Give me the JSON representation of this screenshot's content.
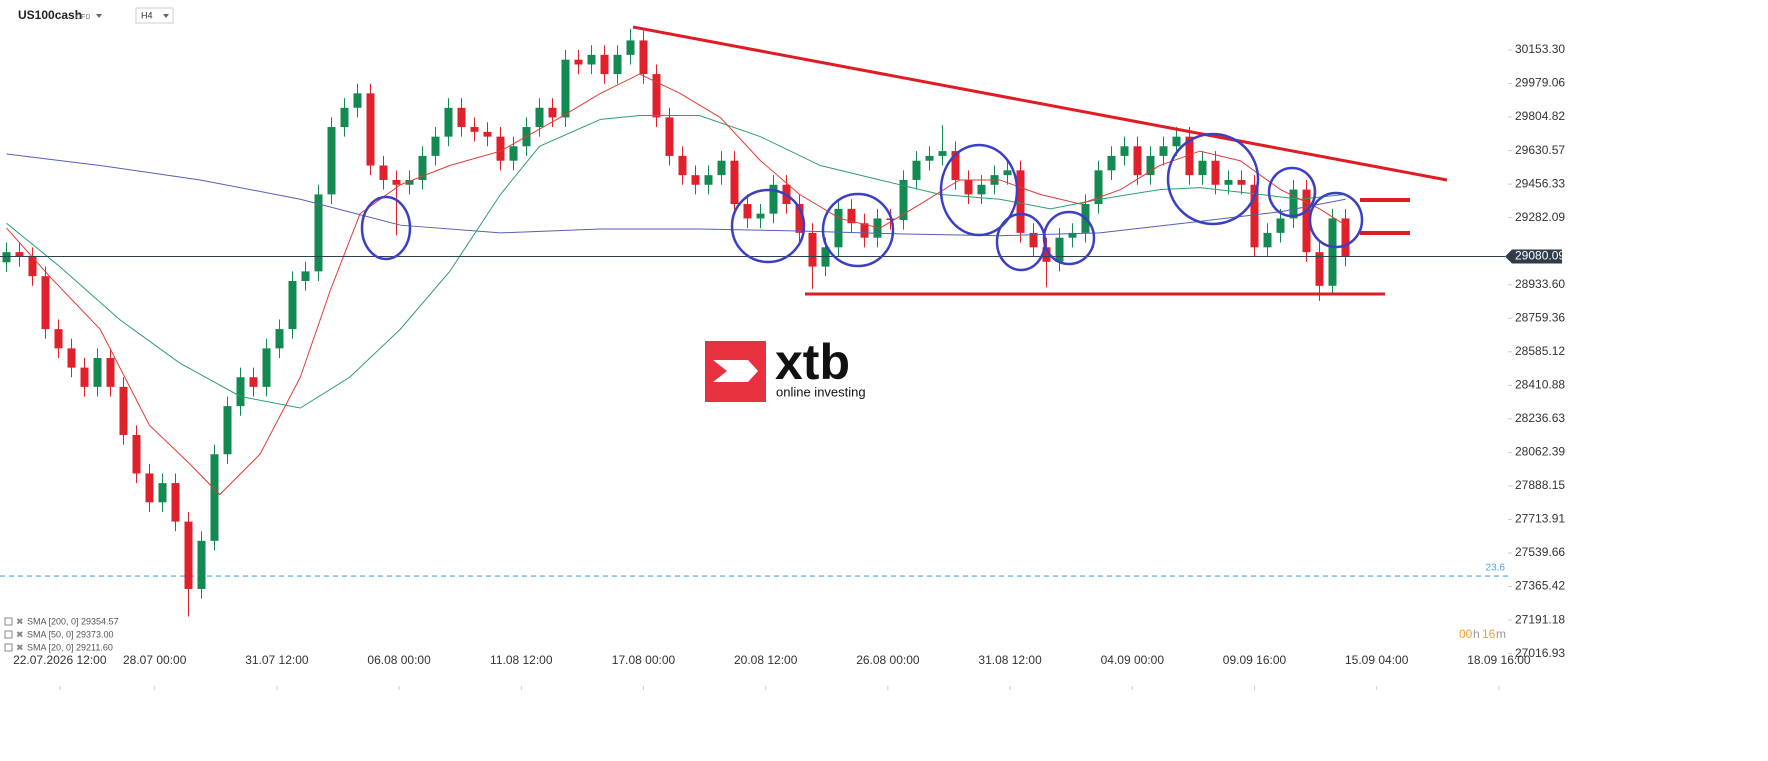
{
  "chart_data": {
    "type": "candlestick",
    "title": "US100cash",
    "instrument_type": "CFD",
    "timeframe": "H4",
    "up_color": "#138a52",
    "down_color": "#e0212c",
    "open": [
      29050,
      29103,
      29078,
      28978,
      28703,
      28603,
      28503,
      28403,
      28553,
      28403,
      28153,
      27953,
      27803,
      27903,
      27703,
      27353,
      27603,
      28053,
      28303,
      28453,
      28403,
      28603,
      28703,
      28953,
      29003,
      29403,
      29753,
      29853,
      29928,
      29553,
      29478,
      29453,
      29478,
      29603,
      29703,
      29853,
      29753,
      29728,
      29703,
      29578,
      29653,
      29753,
      29853,
      29803,
      30103,
      30078,
      30128,
      30028,
      30128,
      30203,
      30028,
      29803,
      29603,
      29503,
      29453,
      29503,
      29578,
      29353,
      29278,
      29303,
      29453,
      29353,
      29203,
      29028,
      29128,
      29328,
      29253,
      29178,
      29278,
      29270,
      29478,
      29578,
      29603,
      29628,
      29478,
      29403,
      29453,
      29503,
      29528,
      29203,
      29128,
      29053,
      29178,
      29203,
      29353,
      29528,
      29603,
      29653,
      29503,
      29603,
      29653,
      29703,
      29503,
      29578,
      29453,
      29478,
      29453,
      29128,
      29203,
      29278,
      29428,
      29103,
      28928,
      29278
    ],
    "high": [
      29153,
      29153,
      29128,
      29028,
      28753,
      28653,
      28553,
      28603,
      28603,
      28453,
      28203,
      28003,
      27953,
      27953,
      27753,
      27653,
      28103,
      28353,
      28503,
      28503,
      28653,
      28753,
      29003,
      29053,
      29453,
      29803,
      29903,
      29978,
      29978,
      29603,
      29528,
      29528,
      29653,
      29753,
      29903,
      29903,
      29803,
      29778,
      29753,
      29703,
      29803,
      29903,
      29903,
      30153,
      30153,
      30178,
      30178,
      30178,
      30263,
      30253,
      30078,
      29853,
      29653,
      29553,
      29553,
      29628,
      29628,
      29403,
      29353,
      29503,
      29503,
      29403,
      29253,
      29178,
      29378,
      29378,
      29303,
      29328,
      29328,
      29528,
      29628,
      29653,
      29763,
      29678,
      29528,
      29503,
      29553,
      29578,
      29578,
      29253,
      29178,
      29228,
      29253,
      29403,
      29578,
      29653,
      29703,
      29703,
      29653,
      29703,
      29753,
      29753,
      29628,
      29628,
      29528,
      29528,
      29503,
      29253,
      29328,
      29478,
      29478,
      29153,
      29328,
      29328
    ],
    "low": [
      29000,
      29028,
      28928,
      28653,
      28553,
      28453,
      28353,
      28353,
      28353,
      28103,
      27903,
      27753,
      27753,
      27653,
      27210,
      27303,
      27553,
      28003,
      28253,
      28353,
      28353,
      28553,
      28653,
      28903,
      28953,
      29353,
      29703,
      29803,
      29503,
      29428,
      29190,
      29403,
      29428,
      29553,
      29653,
      29703,
      29678,
      29653,
      29528,
      29528,
      29603,
      29703,
      29753,
      29753,
      30028,
      30028,
      29978,
      29978,
      30078,
      29978,
      29753,
      29553,
      29453,
      29403,
      29403,
      29453,
      29303,
      29228,
      29228,
      29253,
      29303,
      29153,
      28913,
      28978,
      29078,
      29203,
      29128,
      29128,
      29220,
      29220,
      29428,
      29528,
      29553,
      29428,
      29353,
      29353,
      29403,
      29453,
      29153,
      29078,
      28920,
      29003,
      29128,
      29153,
      29303,
      29478,
      29553,
      29453,
      29453,
      29553,
      29603,
      29453,
      29453,
      29403,
      29403,
      29403,
      29078,
      29078,
      29153,
      29228,
      29053,
      28850,
      28878,
      29030
    ],
    "close": [
      29103,
      29078,
      28978,
      28703,
      28603,
      28503,
      28403,
      28553,
      28403,
      28153,
      27953,
      27803,
      27903,
      27703,
      27353,
      27603,
      28053,
      28303,
      28453,
      28403,
      28603,
      28703,
      28953,
      29003,
      29403,
      29753,
      29853,
      29928,
      29553,
      29478,
      29453,
      29478,
      29603,
      29703,
      29853,
      29753,
      29728,
      29703,
      29578,
      29653,
      29753,
      29853,
      29803,
      30103,
      30078,
      30128,
      30028,
      30128,
      30203,
      30028,
      29803,
      29603,
      29503,
      29453,
      29503,
      29578,
      29353,
      29278,
      29303,
      29453,
      29353,
      29203,
      29028,
      29128,
      29328,
      29253,
      29178,
      29278,
      29270,
      29478,
      29578,
      29603,
      29628,
      29478,
      29403,
      29453,
      29503,
      29528,
      29203,
      29128,
      29053,
      29178,
      29203,
      29353,
      29528,
      29603,
      29653,
      29503,
      29603,
      29653,
      29703,
      29503,
      29578,
      29453,
      29478,
      29453,
      29128,
      29203,
      29278,
      29428,
      29103,
      28928,
      29278,
      29080
    ],
    "series": [
      {
        "name": "SMA [200, 0] 29354.57",
        "color": "#5560b5",
        "x": [
          0,
          7.2,
          14.9,
          22.6,
          30.3,
          38,
          45.7,
          53.3,
          61,
          68.7,
          76.4,
          84.1,
          91.8,
          98,
          103
        ],
        "values": [
          29613,
          29553,
          29478,
          29378,
          29243,
          29203,
          29223,
          29223,
          29213,
          29198,
          29188,
          29203,
          29263,
          29313,
          29378
        ]
      },
      {
        "name": "SMA [50, 0] 29373.00",
        "color": "#2e9e6e",
        "x": [
          0,
          4.1,
          8.7,
          13.3,
          18,
          22.6,
          26.4,
          30.3,
          34.1,
          38,
          41,
          45.7,
          48.7,
          53.3,
          58,
          62.6,
          67.2,
          71.8,
          76.4,
          80.3,
          84.1,
          88.7,
          91.8,
          96.4,
          99.5,
          103
        ],
        "values": [
          29253,
          29028,
          28753,
          28528,
          28353,
          28293,
          28453,
          28703,
          29003,
          29403,
          29653,
          29793,
          29813,
          29813,
          29703,
          29553,
          29478,
          29403,
          29378,
          29328,
          29378,
          29428,
          29438,
          29403,
          29378,
          29403
        ]
      },
      {
        "name": "SMA [20, 0] 29211.60",
        "color": "#e53935",
        "x": [
          0,
          3.3,
          7.2,
          11,
          14.1,
          16.4,
          19.5,
          22.6,
          24.9,
          27.2,
          30.3,
          34.1,
          38,
          42.6,
          45.7,
          48.7,
          51.8,
          54.9,
          58,
          61,
          64.1,
          67.2,
          70.3,
          73.3,
          76.4,
          79.5,
          82.6,
          85.7,
          88.7,
          91.8,
          94.9,
          98,
          101,
          103
        ],
        "values": [
          29228,
          28978,
          28703,
          28203,
          28003,
          27843,
          28053,
          28453,
          28903,
          29303,
          29453,
          29553,
          29628,
          29803,
          29928,
          30028,
          29928,
          29803,
          29578,
          29403,
          29278,
          29228,
          29353,
          29478,
          29478,
          29403,
          29353,
          29428,
          29553,
          29628,
          29578,
          29428,
          29328,
          29243
        ]
      }
    ],
    "last_price": 29080.09,
    "fib_level": {
      "value": 27420,
      "label": "23.6"
    },
    "ylim": [
      26828,
      30413
    ],
    "yticks": [
      {
        "value": 30153.3,
        "label": "30153.30"
      },
      29979.06,
      29804.82,
      29630.57,
      29456.33,
      29282.09,
      {
        "value": 28933.6,
        "label": "28933.60"
      },
      28759.36,
      28585.12,
      28410.88,
      28236.63,
      28062.39,
      27888.15,
      27713.91,
      27539.66,
      27365.42,
      27191.18,
      27016.93
    ],
    "xlim": [
      -0.5,
      115.5
    ],
    "xticks": [
      {
        "value": 4.1,
        "label": "22.07.2026 12:00"
      },
      {
        "value": 11.4,
        "label": "28.07 00:00"
      },
      {
        "value": 20.8,
        "label": "31.07 12:00"
      },
      {
        "value": 30.2,
        "label": "06.08 00:00"
      },
      {
        "value": 39.6,
        "label": "11.08 12:00"
      },
      {
        "value": 49,
        "label": "17.08 00:00"
      },
      {
        "value": 58.4,
        "label": "20.08 12:00"
      },
      {
        "value": 67.8,
        "label": "26.08 00:00"
      },
      {
        "value": 77.2,
        "label": "31.08 12:00"
      },
      {
        "value": 86.6,
        "label": "04.09 00:00"
      },
      {
        "value": 96,
        "label": "09.09 16:00"
      },
      {
        "value": 105.4,
        "label": "15.09 04:00"
      },
      {
        "value": 114.8,
        "label": "18.09 16:00"
      }
    ],
    "timer_parts": [
      "00",
      "h",
      "16",
      "m"
    ],
    "brand": "xtb",
    "brand_tagline": "online investing"
  }
}
